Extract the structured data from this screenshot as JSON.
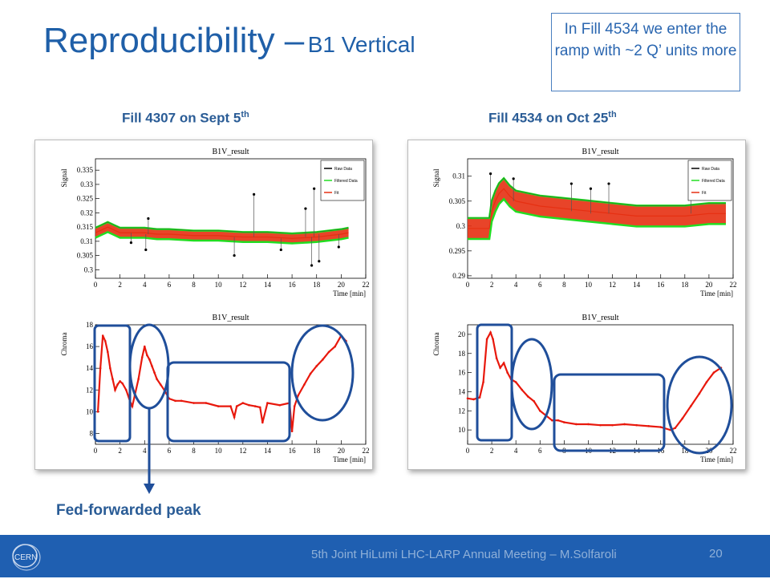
{
  "slide": {
    "title_main": "Reproducibility –",
    "title_sub": "B1 Vertical",
    "note": "In Fill 4534 we enter the ramp with ~2 Q’ units more",
    "fill_left_label": "Fill 4307 on Sept 5",
    "fill_left_sup": "th",
    "fill_right_label": "Fill 4534 on Oct 25",
    "fill_right_sup": "th",
    "annotation": "Fed-forwarded peak",
    "footer": "5th Joint HiLumi LHC-LARP Annual Meeting – M.Solfaroli",
    "page_number": "20",
    "logo_text": "CERN"
  },
  "colors": {
    "title": "#1f5fa8",
    "footer_bg": "#1f5fb1",
    "highlight": "#1f4e9a",
    "raw": "#000000",
    "filtered": "#22dd22",
    "fit": "#e63012",
    "chroma": "#e8180c"
  },
  "chart_data": [
    {
      "type": "line",
      "title": "B1V_result",
      "xlabel": "Time [min]",
      "ylabel": "Signal",
      "xlim": [
        0,
        22
      ],
      "ylim": [
        0.297,
        0.339
      ],
      "xticks": [
        0,
        2,
        4,
        6,
        8,
        10,
        12,
        14,
        16,
        18,
        20,
        22
      ],
      "yticks": [
        0.3,
        0.305,
        0.31,
        0.315,
        0.32,
        0.325,
        0.33,
        0.335
      ],
      "legend": [
        "Raw Data",
        "Filtered Data",
        "Fit"
      ],
      "legend_position": "top-right",
      "series": [
        {
          "name": "Fit",
          "x": [
            0,
            0.5,
            1,
            1.5,
            2,
            3,
            4,
            5,
            6,
            8,
            10,
            12,
            14,
            16,
            18,
            20,
            20.6
          ],
          "y": [
            0.313,
            0.314,
            0.315,
            0.314,
            0.313,
            0.313,
            0.313,
            0.3125,
            0.3125,
            0.312,
            0.312,
            0.3115,
            0.3115,
            0.311,
            0.3115,
            0.3125,
            0.313
          ],
          "band": 0.0035
        }
      ],
      "outliers": [
        {
          "x": 2.9,
          "y": 0.3095
        },
        {
          "x": 4.1,
          "y": 0.307
        },
        {
          "x": 4.3,
          "y": 0.318
        },
        {
          "x": 11.3,
          "y": 0.305
        },
        {
          "x": 12.9,
          "y": 0.3265
        },
        {
          "x": 15.1,
          "y": 0.307
        },
        {
          "x": 17.1,
          "y": 0.3215
        },
        {
          "x": 17.6,
          "y": 0.3015
        },
        {
          "x": 17.8,
          "y": 0.3285
        },
        {
          "x": 18.2,
          "y": 0.303
        },
        {
          "x": 19.8,
          "y": 0.308
        }
      ]
    },
    {
      "type": "line",
      "title": "B1V_result",
      "xlabel": "Time [min]",
      "ylabel": "Chroma",
      "xlim": [
        0,
        22
      ],
      "ylim": [
        7,
        18
      ],
      "xticks": [
        0,
        2,
        4,
        6,
        8,
        10,
        12,
        14,
        16,
        18,
        20,
        22
      ],
      "yticks": [
        8,
        10,
        12,
        14,
        16,
        18
      ],
      "series": [
        {
          "name": "Chroma",
          "x": [
            0.2,
            0.4,
            0.6,
            0.8,
            1.0,
            1.2,
            1.4,
            1.6,
            1.8,
            2.0,
            2.2,
            2.5,
            2.8,
            3.0,
            3.2,
            3.5,
            3.8,
            4.0,
            4.2,
            4.4,
            4.6,
            4.8,
            5.0,
            5.3,
            5.6,
            6.0,
            6.5,
            7,
            8,
            9,
            10,
            11,
            11.3,
            11.5,
            12,
            12.5,
            13,
            13.4,
            13.6,
            14,
            15,
            15.8,
            16.0,
            16.2,
            16.5,
            17,
            17.5,
            18,
            18.5,
            19,
            19.5,
            20,
            20.4
          ],
          "y": [
            10,
            14,
            17,
            16.5,
            15.5,
            14,
            13,
            12,
            12.5,
            12.8,
            12.6,
            12,
            11,
            10.5,
            11.5,
            13,
            15,
            16,
            15.2,
            14.8,
            14.2,
            13.6,
            13,
            12.5,
            12,
            11.2,
            11,
            11,
            10.8,
            10.8,
            10.5,
            10.5,
            9.5,
            10.5,
            10.8,
            10.6,
            10.5,
            10.4,
            9,
            10.8,
            10.6,
            10.8,
            8.2,
            10.5,
            11.5,
            12.5,
            13.5,
            14.2,
            14.8,
            15.5,
            16,
            17,
            16.5
          ]
        }
      ]
    },
    {
      "type": "line",
      "title": "B1V_result",
      "xlabel": "Time [min]",
      "ylabel": "Signal",
      "xlim": [
        0,
        22
      ],
      "ylim": [
        0.2895,
        0.3135
      ],
      "xticks": [
        0,
        2,
        4,
        6,
        8,
        10,
        12,
        14,
        16,
        18,
        20,
        22
      ],
      "yticks": [
        0.29,
        0.295,
        0.3,
        0.305,
        0.31
      ],
      "legend": [
        "Raw Data",
        "Filtered Data",
        "Fit"
      ],
      "legend_position": "top-right",
      "series": [
        {
          "name": "Fit",
          "x": [
            0,
            1,
            1.8,
            2,
            2.3,
            2.6,
            3,
            3.5,
            4,
            5,
            6,
            8,
            10,
            12,
            14,
            16,
            18,
            20,
            21.4
          ],
          "y": [
            0.2995,
            0.2995,
            0.2995,
            0.303,
            0.305,
            0.3065,
            0.3075,
            0.306,
            0.305,
            0.3045,
            0.304,
            0.3035,
            0.303,
            0.3025,
            0.302,
            0.302,
            0.302,
            0.3025,
            0.3025
          ],
          "band": 0.0042
        }
      ],
      "outliers": [
        {
          "x": 1.9,
          "y": 0.3105
        },
        {
          "x": 3.8,
          "y": 0.3095
        },
        {
          "x": 8.6,
          "y": 0.3085
        },
        {
          "x": 10.2,
          "y": 0.3075
        },
        {
          "x": 11.7,
          "y": 0.3085
        },
        {
          "x": 18.5,
          "y": 0.3065
        }
      ]
    },
    {
      "type": "line",
      "title": "B1V_result",
      "xlabel": "Time [min]",
      "ylabel": "Chroma",
      "xlim": [
        0,
        22
      ],
      "ylim": [
        8.5,
        21
      ],
      "xticks": [
        0,
        2,
        4,
        6,
        8,
        10,
        12,
        14,
        16,
        18,
        20,
        22
      ],
      "yticks": [
        10,
        12,
        14,
        16,
        18,
        20
      ],
      "series": [
        {
          "name": "Chroma",
          "x": [
            0,
            0.5,
            1,
            1.3,
            1.6,
            1.9,
            2.1,
            2.4,
            2.7,
            3.0,
            3.3,
            3.6,
            4,
            4.5,
            5,
            5.5,
            6,
            6.5,
            7,
            7.5,
            8,
            9,
            10,
            11,
            12,
            13,
            14,
            15,
            16,
            16.8,
            17.2,
            17.8,
            18.5,
            19.2,
            19.8,
            20.4,
            21
          ],
          "y": [
            13.3,
            13.2,
            13.4,
            15,
            19.5,
            20.2,
            19.5,
            17.5,
            16.5,
            17,
            16,
            15.3,
            15,
            14.2,
            13.5,
            13,
            12,
            11.5,
            11,
            11,
            10.8,
            10.6,
            10.6,
            10.5,
            10.5,
            10.6,
            10.5,
            10.4,
            10.3,
            10,
            10.2,
            11.2,
            12.5,
            13.8,
            15,
            16,
            16.5
          ]
        }
      ]
    }
  ]
}
